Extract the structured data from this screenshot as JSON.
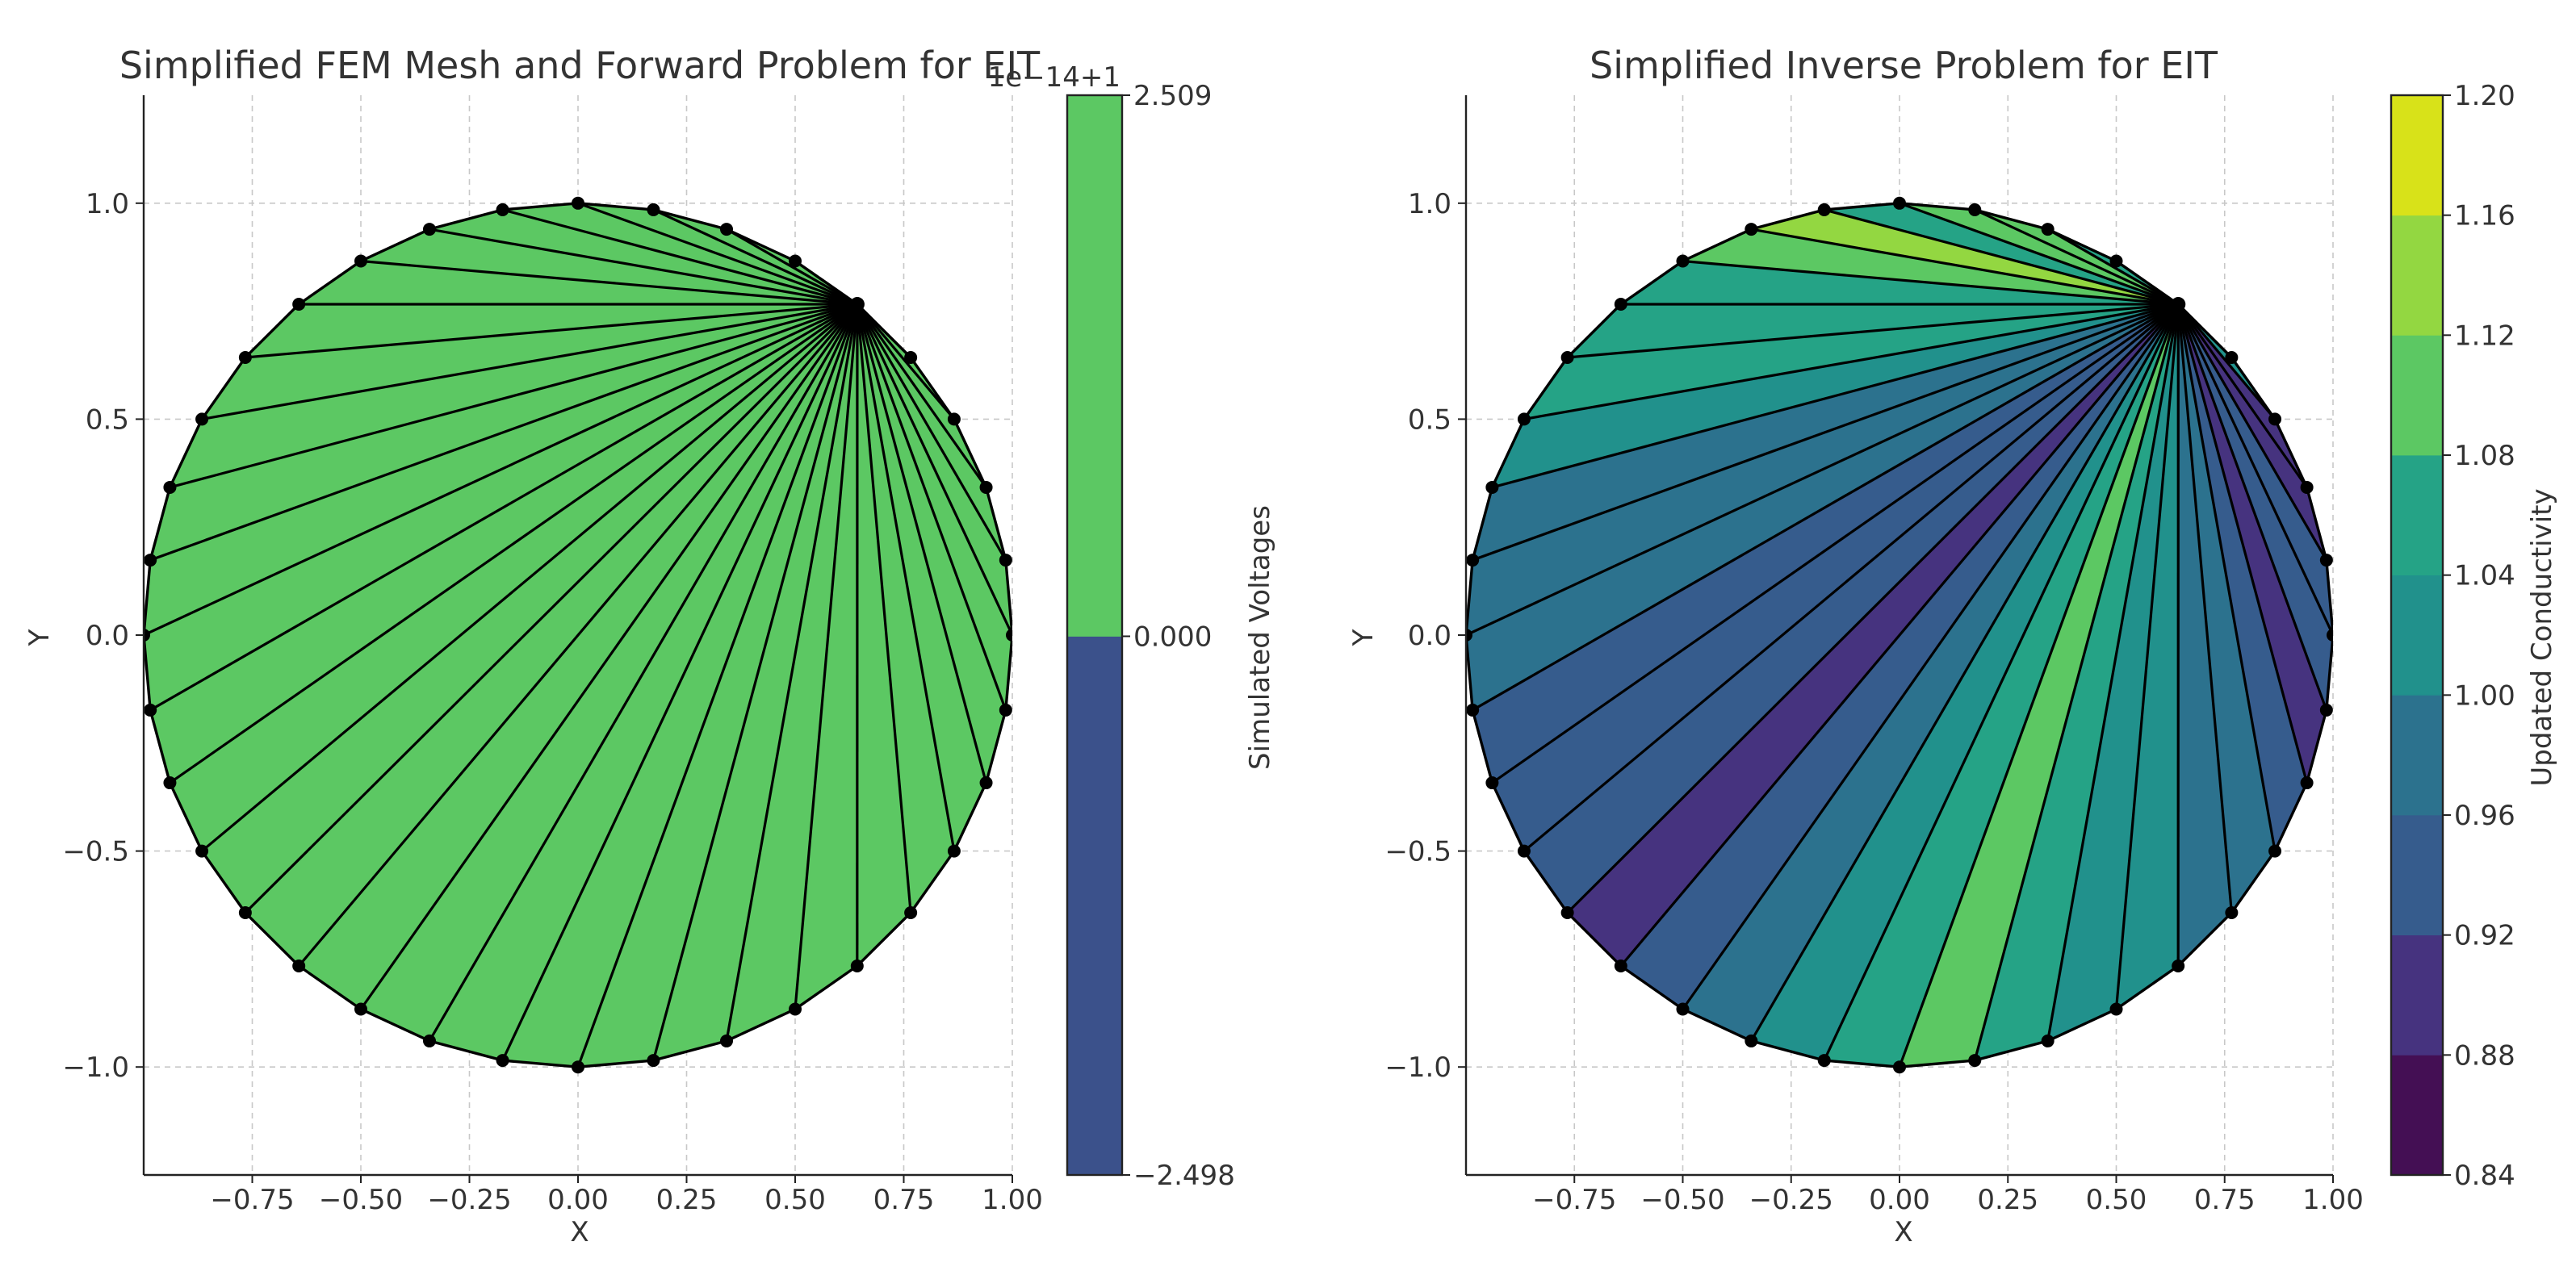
{
  "chart_data": [
    {
      "type": "heatmap",
      "title": "Simplified FEM Mesh and Forward Problem for EIT",
      "xlabel": "X",
      "ylabel": "Y",
      "xlim": [
        -1.0,
        1.0
      ],
      "ylim": [
        -1.25,
        1.25
      ],
      "xticks": [
        "−0.75",
        "−0.50",
        "−0.25",
        "0.00",
        "0.25",
        "0.50",
        "0.75",
        "1.00"
      ],
      "xtick_values": [
        -0.75,
        -0.5,
        -0.25,
        0.0,
        0.25,
        0.5,
        0.75,
        1.0
      ],
      "yticks": [
        "1.0",
        "0.5",
        "0.0",
        "−0.5",
        "−1.0"
      ],
      "ytick_values": [
        1.0,
        0.5,
        0.0,
        -0.5,
        -1.0
      ],
      "grid": true,
      "mesh": {
        "boundary_node_count": 36,
        "fan_center": [
          0.643,
          0.766
        ],
        "node_color": "#000000",
        "edge_color": "#000000"
      },
      "field_color": "#5cc863",
      "colorbar": {
        "label": "Simulated Voltages",
        "offset_text": "1e−14+1",
        "ticks": [
          "2.509",
          "0.000",
          "−2.498"
        ],
        "tick_values": [
          2.509,
          0.0,
          -2.498
        ],
        "levels": [
          {
            "from": -2.498,
            "to": 0.0,
            "color": "#3b518b"
          },
          {
            "from": 0.0,
            "to": 2.509,
            "color": "#5cc863"
          }
        ]
      }
    },
    {
      "type": "heatmap",
      "title": "Simplified Inverse Problem for EIT",
      "xlabel": "X",
      "ylabel": "Y",
      "xlim": [
        -1.0,
        1.0
      ],
      "ylim": [
        -1.25,
        1.25
      ],
      "xticks": [
        "−0.75",
        "−0.50",
        "−0.25",
        "0.00",
        "0.25",
        "0.50",
        "0.75",
        "1.00"
      ],
      "xtick_values": [
        -0.75,
        -0.5,
        -0.25,
        0.0,
        0.25,
        0.5,
        0.75,
        1.0
      ],
      "yticks": [
        "1.0",
        "0.5",
        "0.0",
        "−0.5",
        "−1.0"
      ],
      "ytick_values": [
        1.0,
        0.5,
        0.0,
        -0.5,
        -1.0
      ],
      "grid": true,
      "mesh": {
        "boundary_node_count": 36,
        "fan_center": [
          0.643,
          0.766
        ],
        "node_color": "#000000",
        "edge_color": "#000000"
      },
      "triangle_conductivity": [
        0.94,
        0.9,
        0.92,
        1.02,
        1.05,
        1.06,
        1.07,
        1.09,
        1.1,
        1.06,
        1.14,
        1.09,
        1.06,
        1.05,
        1.07,
        1.03,
        1.0,
        0.98,
        0.97,
        0.95,
        0.94,
        0.93,
        0.92,
        0.95,
        0.98,
        1.02,
        1.06,
        1.09,
        1.06,
        1.04,
        1.02,
        0.99,
        0.97,
        0.93,
        0.9,
        0.93
      ],
      "colorbar": {
        "label": "Updated Conductivity",
        "ticks": [
          "1.20",
          "1.16",
          "1.12",
          "1.08",
          "1.04",
          "1.00",
          "0.96",
          "0.92",
          "0.88",
          "0.84"
        ],
        "tick_values": [
          1.2,
          1.16,
          1.12,
          1.08,
          1.04,
          1.0,
          0.96,
          0.92,
          0.88,
          0.84
        ],
        "levels": [
          {
            "from": 0.84,
            "to": 0.88,
            "color": "#440f54"
          },
          {
            "from": 0.88,
            "to": 0.92,
            "color": "#46337f"
          },
          {
            "from": 0.92,
            "to": 0.96,
            "color": "#365c8d"
          },
          {
            "from": 0.96,
            "to": 1.0,
            "color": "#2c728e"
          },
          {
            "from": 1.0,
            "to": 1.04,
            "color": "#21918c"
          },
          {
            "from": 1.04,
            "to": 1.08,
            "color": "#25a386"
          },
          {
            "from": 1.08,
            "to": 1.12,
            "color": "#5cc863"
          },
          {
            "from": 1.12,
            "to": 1.16,
            "color": "#93d741"
          },
          {
            "from": 1.16,
            "to": 1.2,
            "color": "#d8e219"
          }
        ]
      }
    }
  ]
}
